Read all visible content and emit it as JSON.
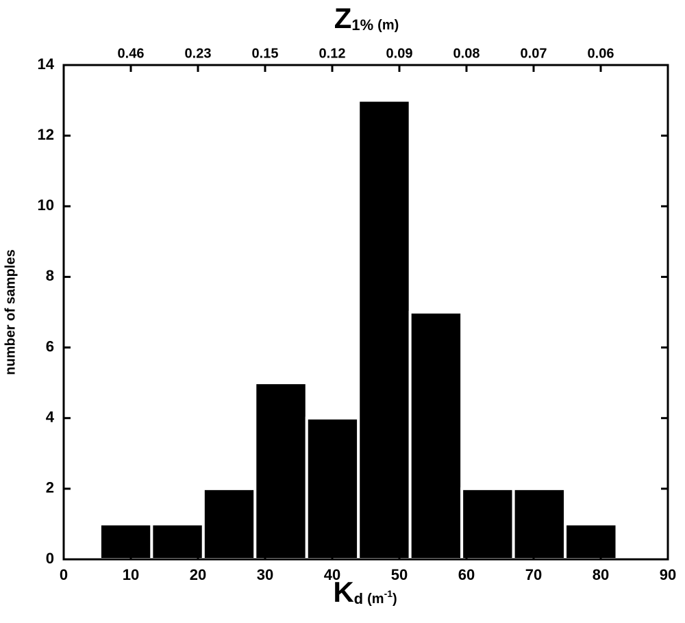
{
  "chart_data": {
    "type": "histogram",
    "bins": [
      5.4,
      13.1,
      20.8,
      28.5,
      36.2,
      43.9,
      51.6,
      59.3,
      67.0,
      74.7,
      82.4
    ],
    "values": [
      1,
      1,
      2,
      5,
      4,
      13,
      7,
      2,
      2,
      1
    ],
    "color": "#000000",
    "xlim": [
      0,
      90
    ],
    "xticks": [
      0,
      10,
      20,
      30,
      40,
      50,
      60,
      70,
      80,
      90
    ],
    "ylim": [
      0,
      14
    ],
    "yticks": [
      0,
      2,
      4,
      6,
      8,
      10,
      12,
      14
    ],
    "x2ticks": [
      {
        "value": 10,
        "label": "0.46"
      },
      {
        "value": 20,
        "label": "0.23"
      },
      {
        "value": 30,
        "label": "0.15"
      },
      {
        "value": 40,
        "label": "0.12"
      },
      {
        "value": 50,
        "label": "0.09"
      },
      {
        "value": 60,
        "label": "0.08"
      },
      {
        "value": 70,
        "label": "0.07"
      },
      {
        "value": 80,
        "label": "0.06"
      }
    ],
    "ylabel": "number of samples",
    "xlabel": {
      "main": "K",
      "sub": "d",
      "unit": "(m",
      "sup": "-1",
      "close": ")"
    },
    "x2label": {
      "main": "Z",
      "sub": "1%",
      "unit": "(m)"
    }
  }
}
